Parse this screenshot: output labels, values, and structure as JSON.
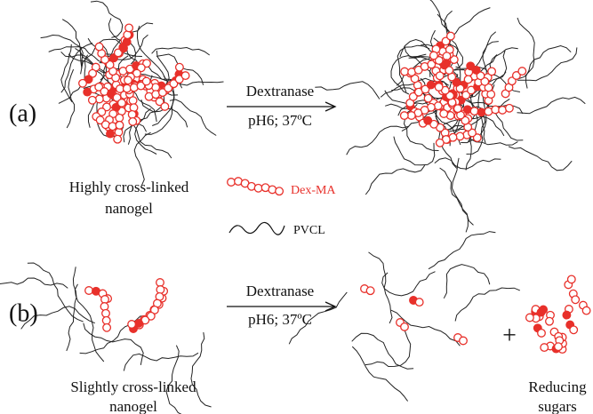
{
  "panel_a": {
    "label": "(a)",
    "arrow_label": [
      "Dextranase",
      "pH6; 37ºC"
    ],
    "caption": [
      "Highly cross-linked",
      "nanogel"
    ]
  },
  "legend": {
    "dex_ma": "Dex-MA",
    "pvcl": "PVCL"
  },
  "panel_b": {
    "label": "(b)",
    "arrow_label": [
      "Dextranase",
      "pH6; 37ºC"
    ],
    "caption": [
      "Slightly cross-linked",
      "nanogel"
    ],
    "plus": "+",
    "product_caption": [
      "Reducing",
      "sugars"
    ]
  }
}
